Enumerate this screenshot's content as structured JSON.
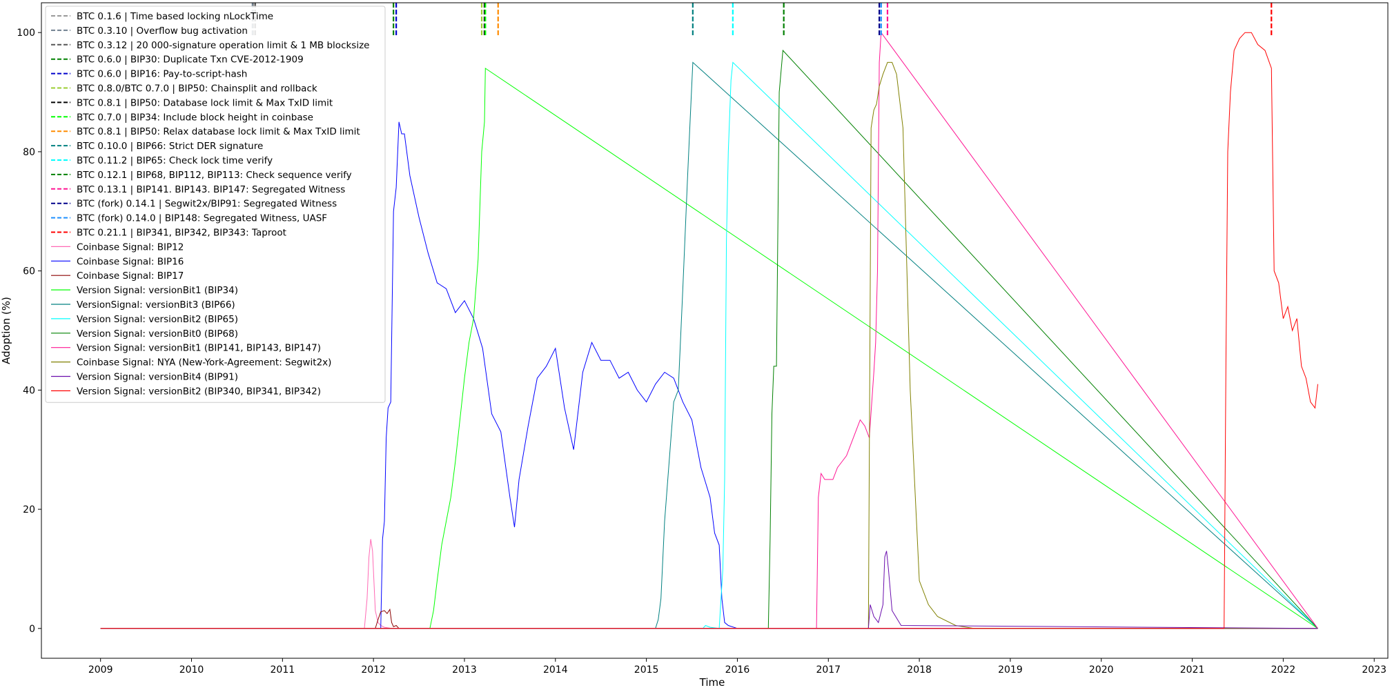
{
  "chart_data": {
    "type": "line",
    "title": "",
    "xlabel": "Time",
    "ylabel": "Adoption (%)",
    "xlim": [
      2008.35,
      2023.15
    ],
    "ylim": [
      -5,
      105
    ],
    "x_ticks": [
      2009,
      2010,
      2011,
      2012,
      2013,
      2014,
      2015,
      2016,
      2017,
      2018,
      2019,
      2020,
      2021,
      2022,
      2023
    ],
    "x_tick_labels": [
      "2009",
      "2010",
      "2011",
      "2012",
      "2013",
      "2014",
      "2015",
      "2016",
      "2017",
      "2018",
      "2019",
      "2020",
      "2021",
      "2022",
      "2023"
    ],
    "y_ticks": [
      0,
      20,
      40,
      60,
      80,
      100
    ],
    "y_tick_labels": [
      "0",
      "20",
      "40",
      "60",
      "80",
      "100"
    ],
    "grid": false,
    "legend_position": "top-left",
    "activations": [
      {
        "name": "BTC 0.1.6 | Time based locking nLockTime",
        "color": "#999999",
        "x": [
          2010.68
        ]
      },
      {
        "name": "BTC 0.3.10 | Overflow bug activation",
        "color": "#708090",
        "x": [
          2010.67
        ]
      },
      {
        "name": "BTC 0.3.12 | 20 000-signature operation limit & 1 MB blocksize",
        "color": "#555555",
        "x": [
          2010.7
        ]
      },
      {
        "name": "BTC 0.6.0 | BIP30: Duplicate Txn CVE-2012-1909",
        "color": "#008000",
        "x": [
          2012.22
        ]
      },
      {
        "name": "BTC 0.6.0 | BIP16: Pay-to-script-hash",
        "color": "#0000cc",
        "x": [
          2012.25
        ]
      },
      {
        "name": "BTC 0.8.0/BTC 0.7.0 | BIP50: Chainsplit and rollback",
        "color": "#9acd32",
        "x": [
          2013.19
        ]
      },
      {
        "name": "BTC 0.8.1 | BIP50: Database  lock limit & Max TxID limit",
        "color": "#000000",
        "x": [
          2013.22
        ]
      },
      {
        "name": "BTC 0.7.0 | BIP34: Include block  height in coinbase",
        "color": "#00ff00",
        "x": [
          2013.23
        ]
      },
      {
        "name": "BTC 0.8.1 | BIP50: Relax database lock limit & Max TxID limit",
        "color": "#ff8c00",
        "x": [
          2013.37
        ]
      },
      {
        "name": "BTC 0.10.0 | BIP66: Strict DER signature",
        "color": "#008080",
        "x": [
          2015.51
        ]
      },
      {
        "name": "BTC 0.11.2 | BIP65: Check lock time verify",
        "color": "#00ffff",
        "x": [
          2015.95
        ]
      },
      {
        "name": "BTC 0.12.1 | BIP68, BIP112, BIP113: Check sequence verify",
        "color": "#008000",
        "x": [
          2016.51
        ]
      },
      {
        "name": "BTC 0.13.1 | BIP141. BIP143. BIP147: Segregated Witness",
        "color": "#ff1493",
        "x": [
          2017.65
        ]
      },
      {
        "name": "BTC (fork) 0.14.1 | Segwit2x/BIP91: Segregated Witness",
        "color": "#00008b",
        "x": [
          2017.56
        ]
      },
      {
        "name": "BTC (fork) 0.14.0 | BIP148: Segregated Witness, UASF",
        "color": "#1e90ff",
        "x": [
          2017.58
        ]
      },
      {
        "name": "BTC 0.21.1 | BIP341, BIP342, BIP343: Taproot",
        "color": "#ff0000",
        "x": [
          2021.87
        ]
      }
    ],
    "series": [
      {
        "name": "Coinbase Signal: BIP12",
        "color": "#ff69b4",
        "x": [
          2009.0,
          2011.9,
          2011.93,
          2011.95,
          2011.97,
          2011.99,
          2012.02,
          2012.05,
          2012.08,
          2012.12,
          2012.2,
          2022.38
        ],
        "y": [
          0,
          0,
          5,
          12,
          15,
          13,
          3,
          1,
          0.5,
          0.2,
          0,
          0
        ]
      },
      {
        "name": "Coinbase Signal: BIP16",
        "color": "#0000ff",
        "x": [
          2009.0,
          2012.08,
          2012.1,
          2012.12,
          2012.14,
          2012.16,
          2012.19,
          2012.22,
          2012.25,
          2012.28,
          2012.31,
          2012.34,
          2012.4,
          2012.5,
          2012.6,
          2012.7,
          2012.8,
          2012.9,
          2013.0,
          2013.1,
          2013.2,
          2013.3,
          2013.4,
          2013.5,
          2013.55,
          2013.6,
          2013.7,
          2013.8,
          2013.9,
          2014.0,
          2014.1,
          2014.2,
          2014.3,
          2014.4,
          2014.5,
          2014.6,
          2014.7,
          2014.8,
          2014.9,
          2015.0,
          2015.1,
          2015.2,
          2015.3,
          2015.4,
          2015.5,
          2015.6,
          2015.7,
          2015.75,
          2015.8,
          2015.83,
          2015.86,
          2015.9,
          2016.0,
          2022.38
        ],
        "y": [
          0,
          0,
          15,
          18,
          32,
          37,
          38,
          70,
          74,
          85,
          83,
          83,
          76,
          69,
          63,
          58,
          57,
          53,
          55,
          52,
          47,
          36,
          33,
          22,
          17,
          25,
          34,
          42,
          44,
          47,
          37,
          30,
          43,
          48,
          45,
          45,
          42,
          43,
          40,
          38,
          41,
          43,
          42,
          38,
          35,
          27,
          22,
          16,
          14,
          5,
          1,
          0.5,
          0,
          0
        ]
      },
      {
        "name": "Coinbase Signal: BIP17",
        "color": "#8b0000",
        "x": [
          2009.0,
          2012.02,
          2012.05,
          2012.08,
          2012.12,
          2012.15,
          2012.18,
          2012.2,
          2012.22,
          2012.25,
          2012.28,
          2022.38
        ],
        "y": [
          0,
          0,
          1.5,
          2.8,
          3.0,
          2.5,
          3.2,
          1.0,
          0.3,
          0.5,
          0,
          0
        ]
      },
      {
        "name": "Version Signal: versionBit1 (BIP34)",
        "color": "#00ff00",
        "x": [
          2009.0,
          2012.62,
          2012.66,
          2012.7,
          2012.75,
          2012.8,
          2012.85,
          2012.9,
          2012.95,
          2013.0,
          2013.05,
          2013.1,
          2013.15,
          2013.19,
          2013.22,
          2013.23,
          2022.38
        ],
        "y": [
          0,
          0,
          3,
          8,
          14,
          18,
          22,
          28,
          35,
          42,
          48,
          52,
          62,
          80,
          85,
          94,
          0
        ]
      },
      {
        "name": "VersionSignal: versionBit3 (BIP66)",
        "color": "#008080",
        "x": [
          2009.0,
          2015.1,
          2015.13,
          2015.16,
          2015.2,
          2015.25,
          2015.3,
          2015.35,
          2015.4,
          2015.45,
          2015.48,
          2015.51,
          2022.38
        ],
        "y": [
          0,
          0,
          1.5,
          5,
          18,
          28,
          38,
          40,
          57,
          75,
          85,
          95,
          0
        ]
      },
      {
        "name": "Version Signal: versionBit2 (BIP65)",
        "color": "#00ffff",
        "x": [
          2009.0,
          2015.62,
          2015.65,
          2015.7,
          2015.8,
          2015.84,
          2015.86,
          2015.88,
          2015.9,
          2015.93,
          2015.95,
          2022.38
        ],
        "y": [
          0,
          0,
          0.5,
          0.2,
          0,
          10,
          25,
          65,
          80,
          92,
          95,
          0
        ]
      },
      {
        "name": "Version Signal: versionBit0 (BIP68)",
        "color": "#008000",
        "x": [
          2009.0,
          2016.34,
          2016.36,
          2016.38,
          2016.4,
          2016.43,
          2016.46,
          2016.5,
          2022.38
        ],
        "y": [
          0,
          0,
          15,
          36,
          44,
          44,
          90,
          97,
          0
        ]
      },
      {
        "name": "Version Signal: versionBit1 (BIP141, BIP143, BIP147)",
        "color": "#ff1493",
        "x": [
          2009.0,
          2016.87,
          2016.89,
          2016.92,
          2016.96,
          2017.0,
          2017.05,
          2017.1,
          2017.15,
          2017.2,
          2017.25,
          2017.3,
          2017.35,
          2017.4,
          2017.45,
          2017.5,
          2017.52,
          2017.54,
          2017.56,
          2017.58,
          2022.38
        ],
        "y": [
          0,
          0,
          22,
          26,
          25,
          25,
          25,
          27,
          28,
          29,
          31,
          33,
          35,
          34,
          32,
          43,
          48,
          60,
          95,
          100,
          0
        ]
      },
      {
        "name": "Coinbase Signal: NYA (New-York-Agreement: Segwit2x)",
        "color": "#808000",
        "x": [
          2009.0,
          2017.44,
          2017.47,
          2017.5,
          2017.53,
          2017.56,
          2017.6,
          2017.65,
          2017.7,
          2017.75,
          2017.82,
          2017.9,
          2018.0,
          2018.1,
          2018.2,
          2018.4,
          2018.6,
          2022.38
        ],
        "y": [
          0,
          0,
          84,
          87,
          88,
          91,
          93,
          95,
          95,
          93,
          84,
          40,
          8,
          4,
          2,
          0.5,
          0,
          0
        ]
      },
      {
        "name": "Version Signal: versionBit4 (BIP91)",
        "color": "#6a0dad",
        "x": [
          2009.0,
          2017.44,
          2017.46,
          2017.48,
          2017.5,
          2017.55,
          2017.6,
          2017.62,
          2017.64,
          2017.66,
          2017.7,
          2017.8,
          2022.38
        ],
        "y": [
          0,
          0,
          4,
          3,
          2,
          1,
          4,
          12,
          13,
          10,
          3,
          0.5,
          0
        ]
      },
      {
        "name": "Version Signal: versionBit2 (BIP340, BIP341, BIP342)",
        "color": "#ff0000",
        "x": [
          2009.0,
          2021.35,
          2021.37,
          2021.39,
          2021.42,
          2021.46,
          2021.52,
          2021.58,
          2021.65,
          2021.72,
          2021.8,
          2021.87,
          2021.9,
          2021.95,
          2022.0,
          2022.05,
          2022.1,
          2022.15,
          2022.2,
          2022.25,
          2022.3,
          2022.35,
          2022.38
        ],
        "y": [
          0,
          0,
          45,
          80,
          90,
          97,
          99,
          100,
          100,
          98,
          97,
          94,
          60,
          58,
          52,
          54,
          50,
          52,
          44,
          42,
          38,
          37,
          41
        ]
      }
    ]
  }
}
